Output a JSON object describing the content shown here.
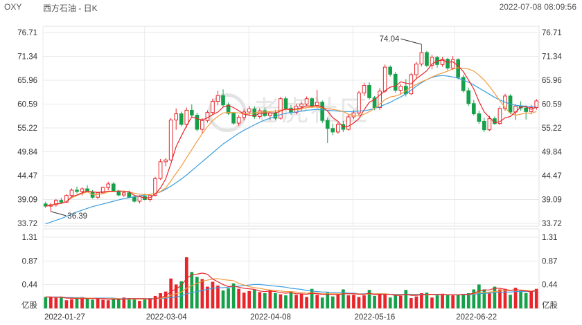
{
  "header": {
    "symbol": "OXY",
    "name": "西方石油 - 日K",
    "datetime": "2022-07-08 08:09:56"
  },
  "watermark": {
    "text": "老虎社区",
    "icon": "tiger-logo-icon"
  },
  "colors": {
    "up": "#e8252a",
    "down": "#17a04a",
    "ma5": "#e8252a",
    "ma10": "#f39a3d",
    "ma20": "#3a9ee0",
    "grid": "#e9e9e9"
  },
  "chart_data": [
    {
      "type": "candlestick",
      "title": "西方石油 - 日K",
      "y_ticks": [
        "76.71",
        "71.34",
        "65.96",
        "60.59",
        "55.22",
        "49.84",
        "44.47",
        "39.09",
        "33.72"
      ],
      "ylim": [
        33.72,
        76.71
      ],
      "x_ticks": [
        "2022-01-27",
        "2022-03-04",
        "2022-04-08",
        "2022-05-16",
        "2022-06-22"
      ],
      "annotations": [
        {
          "label": "74.04",
          "type": "high"
        },
        {
          "label": "36.39",
          "type": "low"
        }
      ],
      "color_convention": "red = close above open, green = close below open",
      "moving_averages": [
        "MA5",
        "MA10",
        "MA20"
      ],
      "ohlc": [
        [
          38.1,
          38.6,
          37.2,
          37.6
        ],
        [
          37.6,
          38.3,
          36.39,
          37.9
        ],
        [
          37.9,
          39.2,
          37.5,
          38.9
        ],
        [
          38.9,
          39.5,
          38.2,
          38.5
        ],
        [
          38.5,
          40.3,
          38.3,
          40.0
        ],
        [
          40.0,
          41.6,
          39.6,
          41.2
        ],
        [
          41.2,
          42.0,
          40.5,
          40.9
        ],
        [
          40.9,
          41.8,
          40.0,
          41.5
        ],
        [
          41.5,
          42.3,
          40.8,
          40.8
        ],
        [
          40.8,
          41.2,
          39.3,
          39.6
        ],
        [
          39.6,
          40.8,
          39.2,
          40.6
        ],
        [
          40.6,
          42.0,
          40.3,
          41.8
        ],
        [
          41.8,
          43.1,
          41.2,
          42.6
        ],
        [
          42.6,
          43.0,
          40.8,
          41.0
        ],
        [
          41.0,
          41.3,
          39.8,
          40.1
        ],
        [
          40.1,
          40.9,
          39.7,
          40.6
        ],
        [
          40.6,
          41.1,
          39.4,
          39.6
        ],
        [
          39.6,
          40.2,
          38.4,
          38.7
        ],
        [
          38.7,
          40.1,
          38.2,
          39.8
        ],
        [
          39.8,
          40.4,
          38.9,
          39.1
        ],
        [
          39.1,
          40.3,
          38.6,
          40.0
        ],
        [
          40.0,
          44.2,
          39.8,
          43.8
        ],
        [
          43.8,
          48.2,
          43.5,
          47.6
        ],
        [
          47.6,
          48.4,
          46.6,
          48.0
        ],
        [
          48.0,
          57.4,
          47.8,
          57.0
        ],
        [
          57.0,
          59.6,
          54.8,
          58.4
        ],
        [
          58.4,
          58.9,
          55.6,
          56.0
        ],
        [
          56.0,
          59.8,
          55.3,
          59.2
        ],
        [
          59.2,
          60.5,
          57.7,
          58.1
        ],
        [
          58.1,
          58.6,
          54.4,
          54.9
        ],
        [
          54.9,
          57.4,
          54.0,
          56.9
        ],
        [
          56.9,
          59.2,
          56.4,
          58.7
        ],
        [
          58.7,
          61.8,
          58.3,
          61.2
        ],
        [
          61.2,
          63.6,
          60.3,
          62.5
        ],
        [
          62.5,
          63.9,
          60.0,
          60.4
        ],
        [
          60.4,
          60.9,
          58.1,
          58.5
        ],
        [
          58.5,
          58.8,
          55.9,
          56.3
        ],
        [
          56.3,
          58.1,
          55.7,
          57.6
        ],
        [
          57.6,
          59.4,
          56.9,
          58.8
        ],
        [
          58.8,
          60.2,
          58.1,
          59.5
        ],
        [
          59.5,
          60.1,
          57.2,
          57.8
        ],
        [
          57.8,
          59.6,
          57.3,
          59.1
        ],
        [
          59.1,
          59.8,
          57.6,
          58.0
        ],
        [
          58.0,
          59.0,
          56.9,
          58.6
        ],
        [
          58.6,
          59.3,
          57.0,
          57.4
        ],
        [
          57.4,
          62.2,
          57.1,
          61.8
        ],
        [
          61.8,
          62.3,
          59.2,
          59.6
        ],
        [
          59.6,
          60.4,
          58.2,
          58.7
        ],
        [
          58.7,
          60.6,
          58.3,
          60.1
        ],
        [
          60.1,
          61.2,
          59.0,
          60.6
        ],
        [
          60.6,
          62.3,
          60.1,
          61.8
        ],
        [
          61.8,
          62.1,
          59.7,
          60.2
        ],
        [
          60.2,
          63.8,
          59.9,
          61.0
        ],
        [
          61.0,
          61.4,
          56.3,
          56.9
        ],
        [
          56.9,
          57.6,
          51.8,
          55.1
        ],
        [
          55.1,
          56.2,
          53.6,
          54.3
        ],
        [
          54.3,
          56.5,
          53.9,
          56.0
        ],
        [
          56.0,
          56.8,
          54.3,
          54.9
        ],
        [
          54.9,
          58.3,
          54.6,
          57.7
        ],
        [
          57.7,
          59.2,
          57.2,
          58.6
        ],
        [
          58.6,
          63.6,
          58.1,
          63.1
        ],
        [
          63.1,
          65.4,
          62.4,
          64.8
        ],
        [
          64.8,
          65.5,
          61.6,
          62.0
        ],
        [
          62.0,
          62.4,
          59.2,
          59.8
        ],
        [
          59.8,
          64.2,
          59.3,
          63.5
        ],
        [
          63.5,
          69.5,
          63.1,
          68.9
        ],
        [
          68.9,
          69.3,
          66.8,
          67.3
        ],
        [
          67.3,
          67.8,
          63.2,
          63.7
        ],
        [
          63.7,
          65.1,
          62.8,
          64.6
        ],
        [
          64.6,
          66.2,
          62.3,
          62.9
        ],
        [
          62.9,
          67.6,
          62.6,
          67.2
        ],
        [
          67.2,
          70.1,
          66.4,
          69.6
        ],
        [
          69.6,
          74.04,
          69.1,
          72.2
        ],
        [
          72.2,
          72.6,
          68.9,
          69.3
        ],
        [
          69.3,
          71.7,
          68.4,
          71.1
        ],
        [
          71.1,
          71.4,
          68.8,
          69.5
        ],
        [
          69.5,
          71.2,
          69.0,
          70.7
        ],
        [
          70.7,
          71.0,
          68.2,
          68.7
        ],
        [
          68.7,
          71.4,
          68.3,
          70.6
        ],
        [
          70.6,
          70.9,
          66.2,
          66.6
        ],
        [
          66.6,
          67.2,
          63.2,
          63.6
        ],
        [
          63.6,
          64.3,
          60.2,
          60.7
        ],
        [
          60.7,
          61.5,
          58.0,
          58.4
        ],
        [
          58.4,
          59.1,
          56.1,
          56.7
        ],
        [
          56.7,
          57.5,
          54.3,
          54.8
        ],
        [
          54.8,
          57.9,
          54.5,
          57.3
        ],
        [
          57.3,
          57.8,
          55.9,
          56.2
        ],
        [
          56.2,
          60.1,
          55.9,
          59.6
        ],
        [
          59.6,
          62.9,
          59.1,
          62.4
        ],
        [
          62.4,
          62.8,
          58.3,
          58.8
        ],
        [
          58.8,
          60.6,
          57.0,
          60.1
        ],
        [
          60.1,
          61.2,
          59.1,
          59.7
        ],
        [
          59.7,
          60.3,
          57.1,
          58.9
        ],
        [
          58.9,
          60.4,
          58.3,
          59.8
        ],
        [
          59.8,
          61.7,
          59.3,
          61.3
        ]
      ],
      "ma5": [
        37.6,
        37.8,
        38.1,
        38.2,
        38.6,
        39.7,
        40.1,
        40.6,
        41.0,
        40.8,
        40.7,
        40.8,
        41.0,
        40.9,
        41.0,
        41.0,
        40.8,
        40.0,
        39.8,
        39.4,
        39.5,
        40.3,
        41.7,
        43.7,
        47.2,
        51.0,
        53.4,
        55.7,
        57.7,
        57.3,
        57.0,
        57.5,
        58.2,
        58.8,
        59.9,
        60.3,
        59.8,
        59.1,
        58.3,
        58.1,
        57.9,
        58.5,
        58.6,
        58.6,
        58.6,
        59.0,
        59.5,
        59.3,
        59.5,
        59.7,
        60.2,
        60.1,
        60.3,
        59.9,
        59.0,
        57.5,
        56.7,
        55.4,
        55.6,
        56.3,
        57.3,
        59.3,
        61.0,
        61.6,
        62.6,
        63.6,
        64.4,
        64.6,
        65.6,
        65.3,
        65.1,
        66.3,
        67.2,
        68.1,
        69.6,
        70.3,
        70.5,
        70.0,
        70.1,
        69.2,
        67.9,
        66.0,
        64.0,
        61.2,
        58.8,
        57.6,
        56.4,
        56.6,
        57.5,
        57.8,
        58.8,
        59.9,
        60.0,
        59.4,
        59.9
      ],
      "ma10": [
        37.6,
        37.8,
        38.0,
        38.2,
        38.6,
        39.5,
        40.0,
        40.4,
        40.8,
        40.2,
        40.2,
        40.4,
        40.8,
        40.9,
        41.0,
        40.9,
        40.8,
        40.5,
        40.3,
        40.2,
        40.2,
        40.5,
        40.9,
        41.7,
        43.3,
        45.0,
        46.6,
        48.5,
        50.3,
        52.2,
        53.9,
        55.5,
        56.9,
        57.8,
        58.6,
        58.7,
        58.7,
        58.6,
        58.4,
        58.4,
        58.6,
        58.8,
        58.8,
        58.9,
        59.0,
        59.2,
        59.4,
        59.3,
        59.3,
        59.5,
        59.8,
        59.9,
        59.9,
        59.7,
        59.6,
        59.4,
        59.2,
        58.9,
        58.3,
        58.0,
        57.9,
        58.3,
        58.9,
        59.6,
        60.6,
        61.6,
        62.2,
        62.4,
        62.8,
        63.6,
        64.4,
        65.0,
        65.6,
        66.1,
        66.7,
        67.2,
        67.6,
        68.0,
        68.5,
        68.8,
        68.6,
        68.5,
        68.0,
        67.1,
        66.0,
        64.6,
        63.0,
        61.3,
        59.8,
        58.5,
        58.1,
        58.3,
        58.6,
        58.5,
        58.9
      ],
      "ma20": [
        33.6,
        34.0,
        34.4,
        34.8,
        35.3,
        35.8,
        36.3,
        36.7,
        37.1,
        37.5,
        37.8,
        38.1,
        38.4,
        38.7,
        39.0,
        39.3,
        39.5,
        39.7,
        39.9,
        40.1,
        40.2,
        40.5,
        40.8,
        41.4,
        42.1,
        42.9,
        43.7,
        44.6,
        45.6,
        46.6,
        47.6,
        48.6,
        49.6,
        50.6,
        51.6,
        52.4,
        53.2,
        54.0,
        54.7,
        55.3,
        55.9,
        56.5,
        57.0,
        57.4,
        57.8,
        58.2,
        58.5,
        58.7,
        58.8,
        59.0,
        59.2,
        59.3,
        59.4,
        59.3,
        59.2,
        59.1,
        59.0,
        58.9,
        58.9,
        58.9,
        59.0,
        59.1,
        59.3,
        59.6,
        60.0,
        60.5,
        61.0,
        61.6,
        62.2,
        62.9,
        63.7,
        64.6,
        65.4,
        66.1,
        66.6,
        66.9,
        67.0,
        66.9,
        66.7,
        66.4,
        66.0,
        65.5,
        64.9,
        64.2,
        63.5,
        62.8,
        62.1,
        61.5,
        61.0,
        60.6,
        60.3,
        60.2,
        60.1,
        60.0,
        59.9
      ]
    },
    {
      "type": "bar",
      "title": "",
      "unit_label": "亿股",
      "y_ticks": [
        "1.31",
        "0.87",
        "0.44"
      ],
      "ylim": [
        0,
        1.31
      ],
      "values": [
        0.21,
        0.21,
        0.19,
        0.21,
        0.15,
        0.17,
        0.18,
        0.21,
        0.19,
        0.16,
        0.18,
        0.16,
        0.15,
        0.17,
        0.18,
        0.2,
        0.19,
        0.18,
        0.14,
        0.17,
        0.19,
        0.23,
        0.28,
        0.31,
        0.55,
        0.44,
        0.5,
        0.94,
        0.67,
        0.58,
        0.54,
        0.4,
        0.49,
        0.42,
        0.33,
        0.37,
        0.46,
        0.36,
        0.29,
        0.32,
        0.34,
        0.3,
        0.28,
        0.34,
        0.28,
        0.26,
        0.24,
        0.31,
        0.25,
        0.27,
        0.21,
        0.36,
        0.25,
        0.2,
        0.29,
        0.22,
        0.27,
        0.35,
        0.24,
        0.25,
        0.21,
        0.24,
        0.34,
        0.23,
        0.27,
        0.25,
        0.2,
        0.24,
        0.23,
        0.34,
        0.19,
        0.22,
        0.28,
        0.29,
        0.2,
        0.24,
        0.27,
        0.26,
        0.24,
        0.25,
        0.26,
        0.28,
        0.35,
        0.44,
        0.35,
        0.29,
        0.4,
        0.35,
        0.36,
        0.25,
        0.38,
        0.32,
        0.28,
        0.31,
        0.36
      ],
      "ma5": [
        0.21,
        0.21,
        0.2,
        0.21,
        0.19,
        0.19,
        0.18,
        0.18,
        0.18,
        0.18,
        0.18,
        0.18,
        0.17,
        0.17,
        0.17,
        0.17,
        0.18,
        0.18,
        0.18,
        0.18,
        0.17,
        0.18,
        0.2,
        0.23,
        0.31,
        0.36,
        0.42,
        0.55,
        0.62,
        0.63,
        0.65,
        0.63,
        0.54,
        0.49,
        0.44,
        0.4,
        0.41,
        0.39,
        0.37,
        0.36,
        0.35,
        0.32,
        0.31,
        0.32,
        0.31,
        0.29,
        0.28,
        0.29,
        0.27,
        0.27,
        0.26,
        0.28,
        0.27,
        0.26,
        0.26,
        0.26,
        0.25,
        0.27,
        0.27,
        0.27,
        0.26,
        0.26,
        0.28,
        0.25,
        0.26,
        0.26,
        0.26,
        0.24,
        0.24,
        0.26,
        0.24,
        0.24,
        0.25,
        0.26,
        0.26,
        0.25,
        0.26,
        0.25,
        0.25,
        0.25,
        0.26,
        0.26,
        0.28,
        0.32,
        0.34,
        0.34,
        0.37,
        0.37,
        0.35,
        0.33,
        0.35,
        0.33,
        0.32,
        0.31,
        0.33
      ],
      "ma10": [
        0.21,
        0.21,
        0.2,
        0.21,
        0.19,
        0.19,
        0.19,
        0.19,
        0.19,
        0.19,
        0.18,
        0.18,
        0.18,
        0.18,
        0.18,
        0.17,
        0.17,
        0.17,
        0.17,
        0.17,
        0.17,
        0.18,
        0.19,
        0.2,
        0.24,
        0.27,
        0.3,
        0.37,
        0.42,
        0.46,
        0.5,
        0.52,
        0.54,
        0.55,
        0.53,
        0.52,
        0.51,
        0.46,
        0.43,
        0.4,
        0.38,
        0.37,
        0.35,
        0.34,
        0.33,
        0.32,
        0.31,
        0.31,
        0.3,
        0.29,
        0.28,
        0.29,
        0.28,
        0.27,
        0.27,
        0.27,
        0.27,
        0.27,
        0.27,
        0.27,
        0.27,
        0.26,
        0.27,
        0.27,
        0.27,
        0.27,
        0.26,
        0.25,
        0.25,
        0.26,
        0.25,
        0.25,
        0.25,
        0.25,
        0.25,
        0.25,
        0.25,
        0.25,
        0.25,
        0.25,
        0.26,
        0.26,
        0.27,
        0.29,
        0.29,
        0.3,
        0.31,
        0.32,
        0.33,
        0.33,
        0.34,
        0.34,
        0.33,
        0.32,
        0.33
      ],
      "ma20": [
        0.21,
        0.21,
        0.21,
        0.21,
        0.2,
        0.2,
        0.2,
        0.2,
        0.19,
        0.19,
        0.19,
        0.19,
        0.19,
        0.19,
        0.18,
        0.18,
        0.18,
        0.18,
        0.18,
        0.18,
        0.18,
        0.18,
        0.18,
        0.19,
        0.2,
        0.21,
        0.23,
        0.27,
        0.29,
        0.31,
        0.33,
        0.35,
        0.37,
        0.38,
        0.38,
        0.39,
        0.4,
        0.41,
        0.42,
        0.43,
        0.44,
        0.44,
        0.43,
        0.42,
        0.41,
        0.4,
        0.39,
        0.37,
        0.36,
        0.35,
        0.33,
        0.32,
        0.31,
        0.3,
        0.3,
        0.29,
        0.29,
        0.29,
        0.28,
        0.28,
        0.27,
        0.27,
        0.27,
        0.27,
        0.27,
        0.27,
        0.26,
        0.26,
        0.26,
        0.26,
        0.26,
        0.26,
        0.26,
        0.26,
        0.26,
        0.26,
        0.26,
        0.25,
        0.25,
        0.25,
        0.25,
        0.25,
        0.26,
        0.27,
        0.28,
        0.28,
        0.29,
        0.29,
        0.3,
        0.3,
        0.31,
        0.31,
        0.31,
        0.31,
        0.32
      ]
    }
  ]
}
